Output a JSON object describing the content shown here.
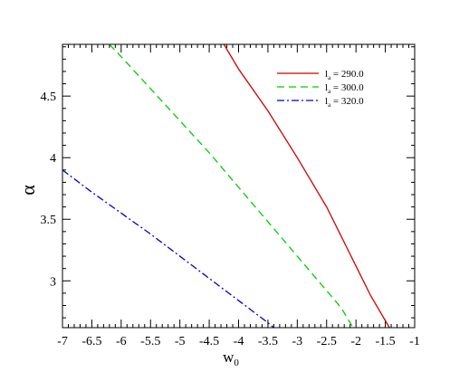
{
  "chart_data": {
    "type": "line",
    "xlabel": "w",
    "xlabel_sub": "0",
    "ylabel": "α",
    "xlim": [
      -7,
      -1
    ],
    "ylim": [
      2.62,
      4.92
    ],
    "xticks": [
      -7,
      -6.5,
      -6,
      -5.5,
      -5,
      -4.5,
      -4,
      -3.5,
      -3,
      -2.5,
      -2,
      -1.5,
      -1
    ],
    "xtick_labels": [
      "-7",
      "-6.5",
      "-6",
      "-5.5",
      "-5",
      "-4.5",
      "-4",
      "-3.5",
      "-3",
      "-2.5",
      "-2",
      "-1.5",
      "-1"
    ],
    "yticks": [
      3,
      3.5,
      4,
      4.5
    ],
    "ytick_labels": [
      "3",
      "3.5",
      "4",
      "4.5"
    ],
    "grid": false,
    "legend_position": "top-right",
    "series": [
      {
        "name_main": "l",
        "name_sub": "a",
        "name_value": " = 290.0",
        "color": "#cc0000",
        "dash": "solid",
        "points": [
          [
            -4.25,
            4.92
          ],
          [
            -4.0,
            4.72
          ],
          [
            -3.5,
            4.38
          ],
          [
            -3.0,
            4.0
          ],
          [
            -2.5,
            3.6
          ],
          [
            -2.0,
            3.12
          ],
          [
            -1.75,
            2.88
          ],
          [
            -1.43,
            2.62
          ]
        ]
      },
      {
        "name_main": "l",
        "name_sub": "a",
        "name_value": " = 300.0",
        "color": "#00cc00",
        "dash": "dashed",
        "points": [
          [
            -6.2,
            4.92
          ],
          [
            -6.0,
            4.82
          ],
          [
            -5.5,
            4.56
          ],
          [
            -5.0,
            4.3
          ],
          [
            -4.5,
            4.04
          ],
          [
            -4.0,
            3.76
          ],
          [
            -3.5,
            3.48
          ],
          [
            -3.0,
            3.2
          ],
          [
            -2.5,
            2.92
          ],
          [
            -2.25,
            2.78
          ],
          [
            -2.05,
            2.62
          ]
        ]
      },
      {
        "name_main": "l",
        "name_sub": "a",
        "name_value": " = 320.0",
        "color": "#0000cc",
        "dash": "dashdot",
        "points": [
          [
            -7.0,
            3.9
          ],
          [
            -6.5,
            3.72
          ],
          [
            -6.0,
            3.55
          ],
          [
            -5.5,
            3.38
          ],
          [
            -5.0,
            3.2
          ],
          [
            -4.5,
            3.02
          ],
          [
            -4.0,
            2.84
          ],
          [
            -3.5,
            2.66
          ],
          [
            -3.4,
            2.62
          ]
        ]
      }
    ]
  }
}
